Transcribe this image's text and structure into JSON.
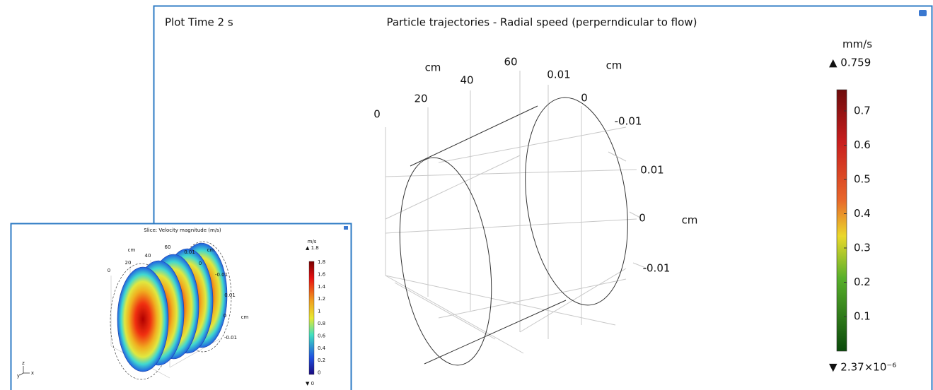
{
  "main_plot": {
    "time_label": "Plot Time 2 s",
    "title": "Particle trajectories - Radial speed (perperndicular to flow)",
    "axis_labels": [
      "cm",
      "60",
      "40",
      "0.01",
      "cm",
      "20",
      "0",
      "0",
      "-0.01",
      "0.01",
      "0",
      "cm",
      "-0.01"
    ],
    "colorbar": {
      "unit": "mm/s",
      "max_label": "▲ 0.759",
      "ticks": [
        0.7,
        0.6,
        0.5,
        0.4,
        0.3,
        0.2,
        0.1
      ],
      "min_label": "▼ 2.37×10⁻⁶"
    }
  },
  "inset_plot": {
    "title": "Slice: Velocity magnitude (m/s)",
    "axis_labels": [
      "cm",
      "60",
      "40",
      "0.01",
      "cm",
      "20",
      "0",
      "0",
      "-0.01",
      "0.01",
      "0",
      "cm",
      "-0.01"
    ],
    "triad": [
      "y",
      "z",
      "x"
    ],
    "colorbar": {
      "unit": "m/s",
      "max_label": "▲ 1.8",
      "ticks": [
        1.8,
        1.6,
        1.4,
        1.2,
        1,
        0.8,
        0.6,
        0.4,
        0.2,
        0
      ],
      "min_label": "▼ 0"
    }
  }
}
